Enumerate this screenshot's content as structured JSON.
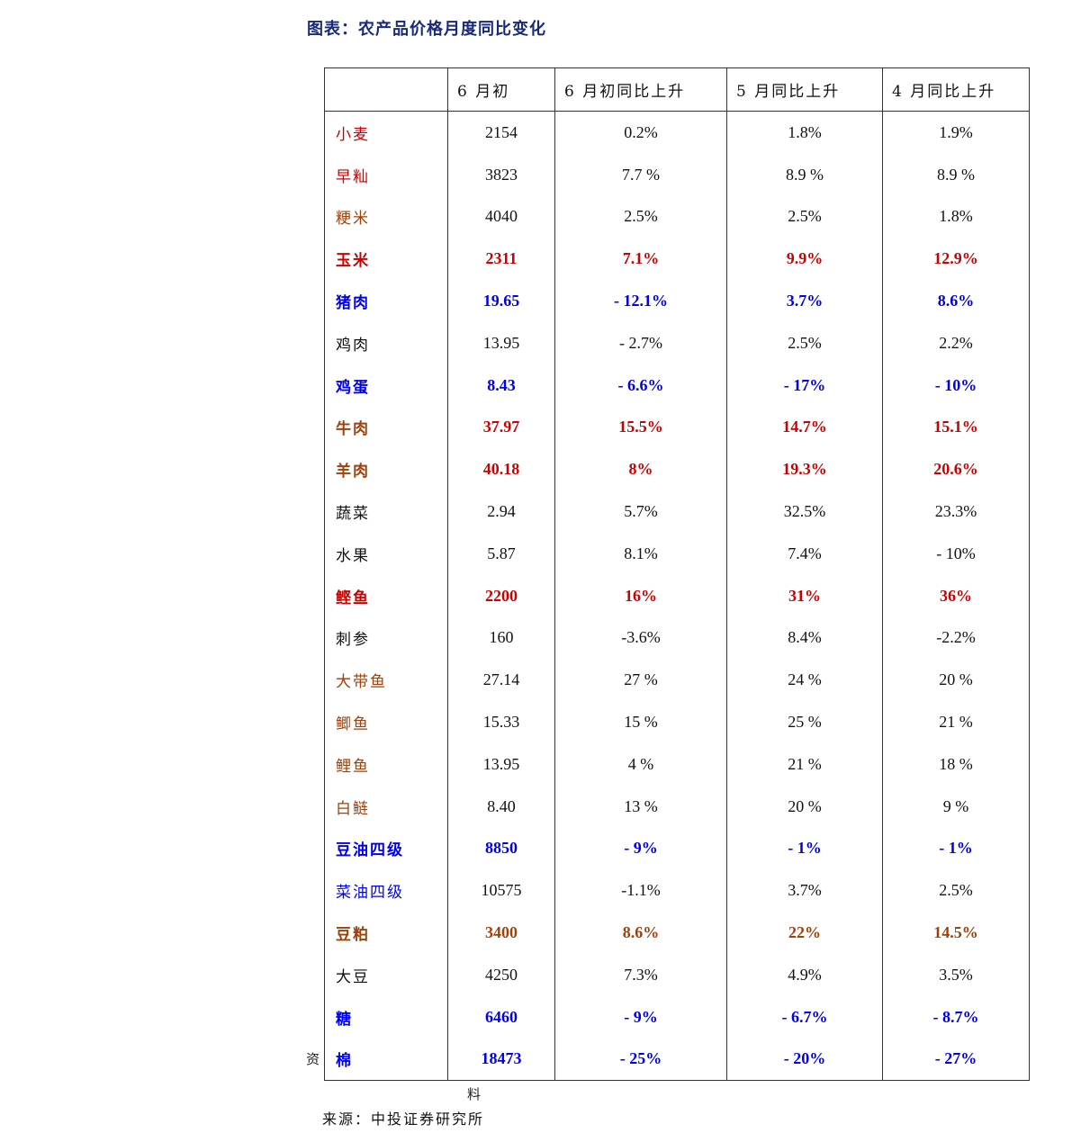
{
  "title": "图表：农产品价格月度同比变化",
  "colors": {
    "red": "#cc0000",
    "brown": "#a0400a",
    "blue": "#0000ee",
    "black": "#111111"
  },
  "headers": [
    "",
    "6 月初",
    "6 月初同比上升",
    "5 月同比上升",
    "4 月同比上升"
  ],
  "rows": [
    {
      "name": "小麦",
      "name_color": "red",
      "value_color": "black",
      "bold": false,
      "cells": [
        "2154",
        "0.2%",
        "1.8%",
        "1.9%"
      ]
    },
    {
      "name": "早籼",
      "name_color": "red",
      "value_color": "black",
      "bold": false,
      "cells": [
        "3823",
        "7.7 %",
        "8.9 %",
        "8.9 %"
      ]
    },
    {
      "name": "粳米",
      "name_color": "brown",
      "value_color": "black",
      "bold": false,
      "cells": [
        "4040",
        "2.5%",
        "2.5%",
        "1.8%"
      ]
    },
    {
      "name": "玉米",
      "name_color": "red",
      "value_color": "red",
      "bold": true,
      "cells": [
        "2311",
        "7.1%",
        "9.9%",
        "12.9%"
      ]
    },
    {
      "name": "猪肉",
      "name_color": "blue",
      "value_color": "blue",
      "bold": true,
      "cells": [
        "19.65",
        "- 12.1%",
        "3.7%",
        "8.6%"
      ]
    },
    {
      "name": "鸡肉",
      "name_color": "black",
      "value_color": "black",
      "bold": false,
      "cells": [
        "13.95",
        "- 2.7%",
        "2.5%",
        "2.2%"
      ]
    },
    {
      "name": "鸡蛋",
      "name_color": "blue",
      "value_color": "blue",
      "bold": true,
      "cells": [
        "8.43",
        "- 6.6%",
        "- 17%",
        "- 10%"
      ]
    },
    {
      "name": "牛肉",
      "name_color": "brown",
      "value_color": "red",
      "bold": true,
      "cells": [
        "37.97",
        "15.5%",
        "14.7%",
        "15.1%"
      ]
    },
    {
      "name": "羊肉",
      "name_color": "brown",
      "value_color": "red",
      "bold": true,
      "cells": [
        "40.18",
        "8%",
        "19.3%",
        "20.6%"
      ]
    },
    {
      "name": "蔬菜",
      "name_color": "black",
      "value_color": "black",
      "bold": false,
      "cells": [
        "2.94",
        "5.7%",
        "32.5%",
        "23.3%"
      ]
    },
    {
      "name": "水果",
      "name_color": "black",
      "value_color": "black",
      "bold": false,
      "cells": [
        "5.87",
        "8.1%",
        "7.4%",
        "- 10%"
      ]
    },
    {
      "name": "鲣鱼",
      "name_color": "red",
      "value_color": "red",
      "bold": true,
      "cells": [
        "2200",
        "16%",
        "31%",
        "36%"
      ]
    },
    {
      "name": "刺参",
      "name_color": "black",
      "value_color": "black",
      "bold": false,
      "cells": [
        "160",
        "-3.6%",
        "8.4%",
        "-2.2%"
      ]
    },
    {
      "name": "大带鱼",
      "name_color": "brown",
      "value_color": "black",
      "bold": false,
      "cells": [
        "27.14",
        "27 %",
        "24 %",
        "20 %"
      ]
    },
    {
      "name": "鲫鱼",
      "name_color": "brown",
      "value_color": "black",
      "bold": false,
      "cells": [
        "15.33",
        "15 %",
        "25 %",
        "21 %"
      ]
    },
    {
      "name": "鲤鱼",
      "name_color": "brown",
      "value_color": "black",
      "bold": false,
      "cells": [
        "13.95",
        "4 %",
        "21 %",
        "18 %"
      ]
    },
    {
      "name": "白鲢",
      "name_color": "brown",
      "value_color": "black",
      "bold": false,
      "cells": [
        "8.40",
        "13 %",
        "20 %",
        "9 %"
      ]
    },
    {
      "name": "豆油四级",
      "name_color": "blue",
      "value_color": "blue",
      "bold": true,
      "cells": [
        "8850",
        "- 9%",
        "- 1%",
        "- 1%"
      ]
    },
    {
      "name": "菜油四级",
      "name_color": "blue",
      "value_color": "black",
      "bold": false,
      "cells": [
        "10575",
        "-1.1%",
        "3.7%",
        "2.5%"
      ]
    },
    {
      "name": "豆粕",
      "name_color": "brown",
      "value_color": "brown",
      "bold": true,
      "cells": [
        "3400",
        "8.6%",
        "22%",
        "14.5%"
      ]
    },
    {
      "name": "大豆",
      "name_color": "black",
      "value_color": "black",
      "bold": false,
      "cells": [
        "4250",
        "7.3%",
        "4.9%",
        "3.5%"
      ]
    },
    {
      "name": "糖",
      "name_color": "blue",
      "value_color": "blue",
      "bold": true,
      "cells": [
        "6460",
        "- 9%",
        "- 6.7%",
        "- 8.7%"
      ]
    },
    {
      "name": "棉",
      "name_color": "blue",
      "value_color": "blue",
      "bold": true,
      "cells": [
        "18473",
        "- 25%",
        "- 20%",
        "- 27%"
      ]
    }
  ],
  "stray_chars": [
    "资",
    "料"
  ],
  "source": "来源：中投证券研究所"
}
